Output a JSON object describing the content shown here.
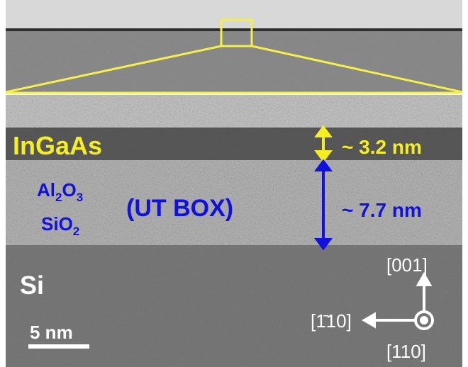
{
  "labels": {
    "ingaas": "InGaAs",
    "ingaas_thickness": "~ 3.2 nm",
    "box_thickness": "~ 7.7 nm",
    "al2o3": [
      "Al",
      "2",
      "O",
      "3"
    ],
    "sio2": [
      "SiO",
      "2"
    ],
    "ut_box": "(UT BOX)",
    "si": "Si",
    "scale": "5 nm",
    "dir_001": "[001]",
    "dir_110bar": "[1̄10]",
    "dir_110": "[110]"
  }
}
